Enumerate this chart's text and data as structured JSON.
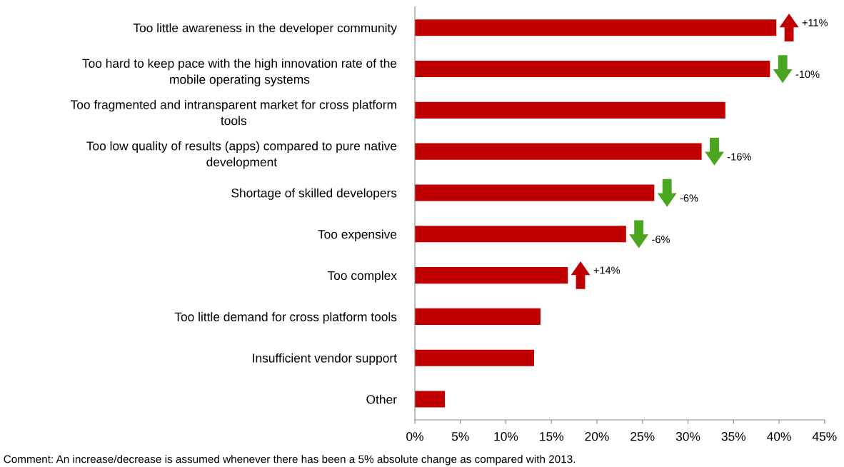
{
  "chart_data": {
    "type": "bar",
    "orientation": "horizontal",
    "categories": [
      "Too little awareness in the developer community",
      "Too hard to keep pace with the high innovation rate of the mobile operating systems",
      "Too fragmented and intransparent market for cross platform tools",
      "Too low quality of results (apps) compared to pure native development",
      "Shortage of skilled developers",
      "Too expensive",
      "Too complex",
      "Too little demand for cross platform tools",
      "Insufficient vendor support",
      "Other"
    ],
    "values": [
      39.7,
      39.0,
      34.1,
      31.5,
      26.3,
      23.2,
      16.8,
      13.8,
      13.1,
      3.3
    ],
    "color": "#c00000",
    "xlim": [
      0,
      45
    ],
    "xticks": [
      {
        "value": 0,
        "label": "0%"
      },
      {
        "value": 5,
        "label": "5%"
      },
      {
        "value": 10,
        "label": "10%"
      },
      {
        "value": 15,
        "label": "15%"
      },
      {
        "value": 20,
        "label": "20%"
      },
      {
        "value": 25,
        "label": "25%"
      },
      {
        "value": 30,
        "label": "30%"
      },
      {
        "value": 35,
        "label": "35%"
      },
      {
        "value": 40,
        "label": "40%"
      },
      {
        "value": 45,
        "label": "45%"
      }
    ],
    "grid": false,
    "legend": false,
    "annotations": [
      {
        "text": "+11%",
        "x": 39.7,
        "y": "Too little awareness in the developer community"
      },
      {
        "text": "-10%",
        "x": 39.0,
        "y": "Too hard to keep pace with the high innovation rate of the mobile operating systems"
      },
      {
        "text": "-16%",
        "x": 31.5,
        "y": "Too low quality of results (apps) compared to pure native development"
      },
      {
        "text": "-6%",
        "x": 26.3,
        "y": "Shortage of skilled developers"
      },
      {
        "text": "-6%",
        "x": 23.2,
        "y": "Too expensive"
      },
      {
        "text": "+14%",
        "x": 16.8,
        "y": "Too complex"
      },
      "Comment: An increase/decrease is assumed whenever there has been a 5% absolute change as compared with 2013."
    ]
  }
}
